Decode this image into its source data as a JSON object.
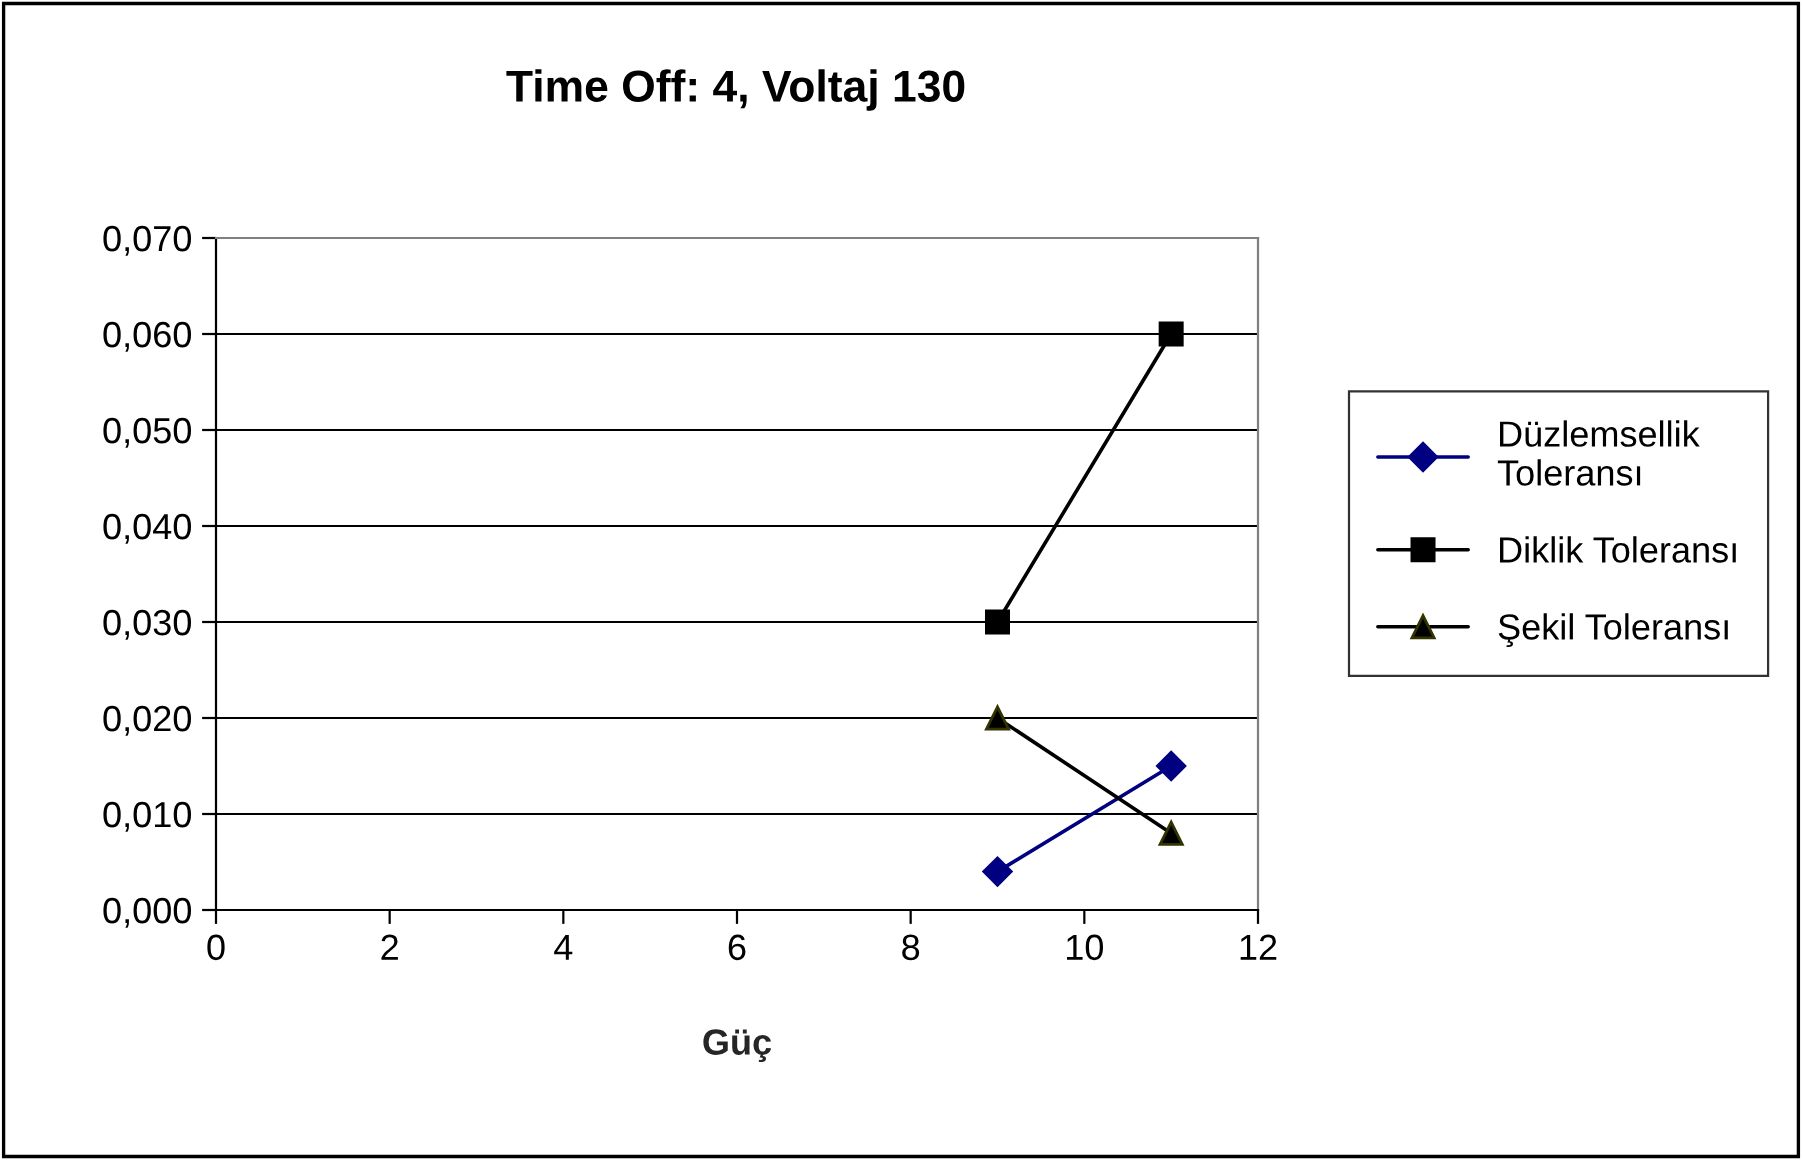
{
  "chart_data": {
    "type": "line",
    "title": "Time Off: 4, Voltaj 130",
    "xlabel": "Güç",
    "x": [
      9,
      11
    ],
    "series": [
      {
        "name": "Düzlemsellik Toleransı",
        "color": "#000080",
        "values": [
          0.004,
          0.015
        ],
        "marker": "diamond"
      },
      {
        "name": "Diklik Toleransı",
        "color": "#000000",
        "values": [
          0.03,
          0.06
        ],
        "marker": "square"
      },
      {
        "name": "Şekil Toleransı",
        "color": "#000000",
        "values": [
          0.02,
          0.008
        ],
        "marker": "triangle"
      }
    ],
    "xlim": [
      0,
      12
    ],
    "xticks": [
      0,
      2,
      4,
      6,
      8,
      10,
      12
    ],
    "ylim": [
      0,
      0.07
    ],
    "yticks": [
      {
        "value": 0,
        "label": "0,000"
      },
      {
        "value": 0.01,
        "label": "0,010"
      },
      {
        "value": 0.02,
        "label": "0,020"
      },
      {
        "value": 0.03,
        "label": "0,030"
      },
      {
        "value": 0.04,
        "label": "0,040"
      },
      {
        "value": 0.05,
        "label": "0,050"
      },
      {
        "value": 0.06,
        "label": "0,060"
      },
      {
        "value": 0.07,
        "label": "0,070"
      }
    ],
    "grid": "y",
    "legend": "right"
  }
}
